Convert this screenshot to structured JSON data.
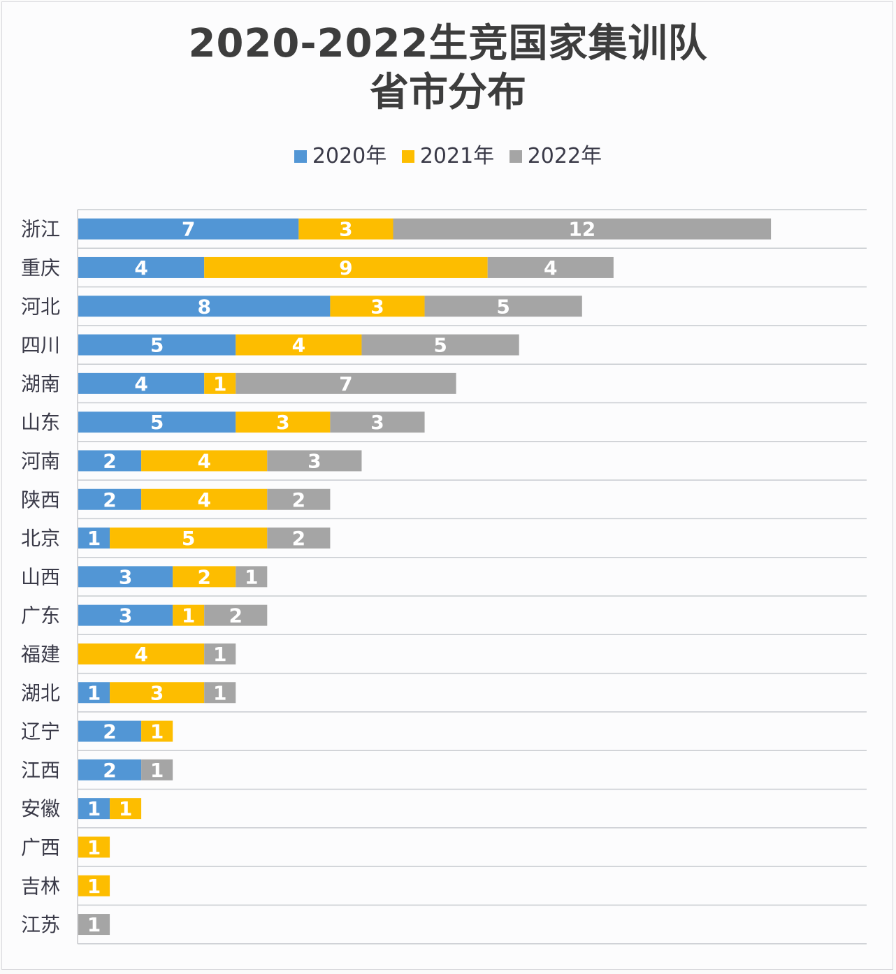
{
  "chart_data": {
    "type": "bar",
    "orientation": "horizontal",
    "stacked": true,
    "title": "2020-2022生竞国家集训队",
    "subtitle": "省市分布",
    "xlabel": "",
    "ylabel": "",
    "xlim": [
      0,
      25
    ],
    "grid": true,
    "legend_position": "top",
    "categories": [
      "浙江",
      "重庆",
      "河北",
      "四川",
      "湖南",
      "山东",
      "河南",
      "陕西",
      "北京",
      "山西",
      "广东",
      "福建",
      "湖北",
      "辽宁",
      "江西",
      "安徽",
      "广西",
      "吉林",
      "江苏"
    ],
    "series": [
      {
        "name": "2020年",
        "color": "#5296d5",
        "values": [
          7,
          4,
          8,
          5,
          4,
          5,
          2,
          2,
          1,
          3,
          3,
          0,
          1,
          2,
          2,
          1,
          0,
          0,
          0
        ]
      },
      {
        "name": "2021年",
        "color": "#fdbd00",
        "values": [
          3,
          9,
          3,
          4,
          1,
          3,
          4,
          4,
          5,
          2,
          1,
          4,
          3,
          1,
          0,
          1,
          1,
          1,
          0
        ]
      },
      {
        "name": "2022年",
        "color": "#a5a5a5",
        "values": [
          12,
          4,
          5,
          5,
          7,
          3,
          3,
          2,
          2,
          1,
          2,
          1,
          1,
          0,
          1,
          0,
          0,
          0,
          1
        ]
      }
    ]
  }
}
